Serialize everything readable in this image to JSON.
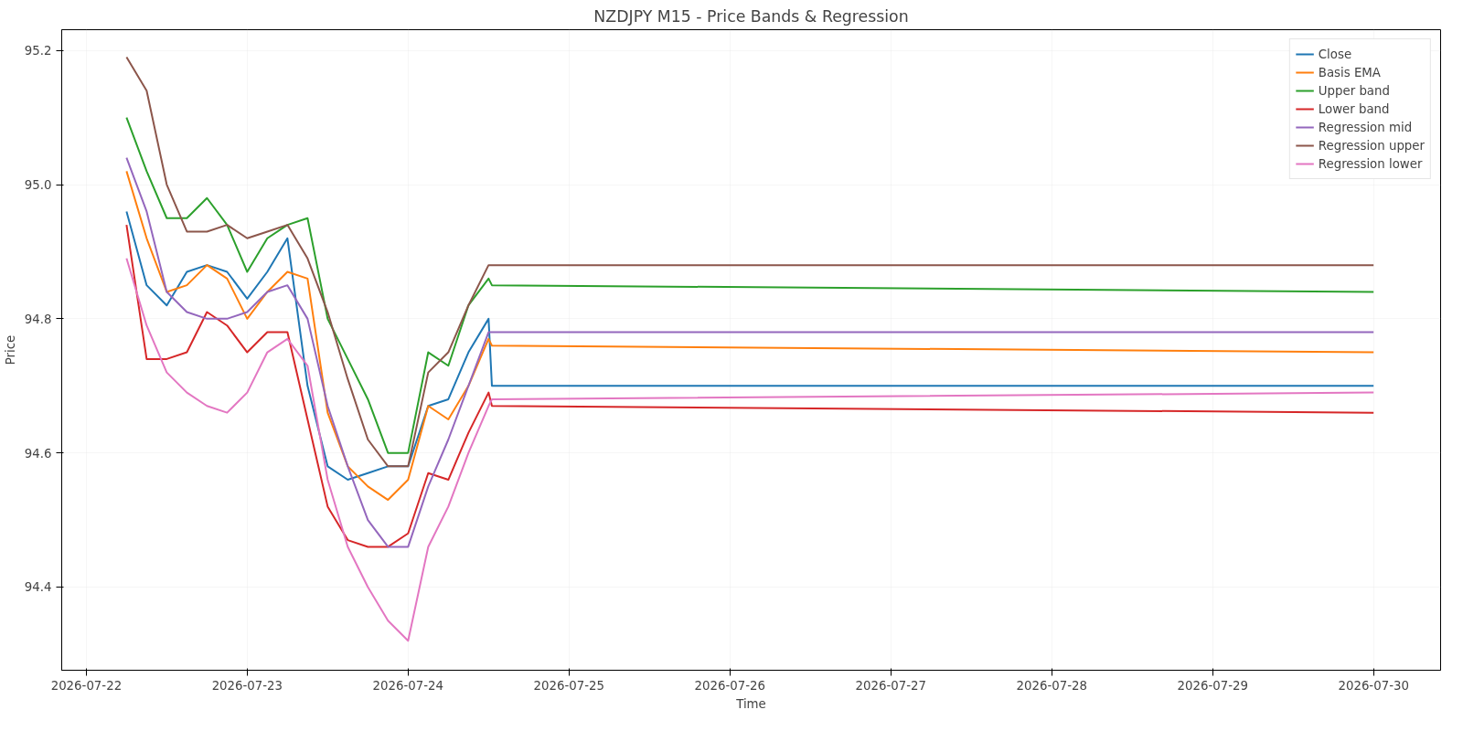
{
  "chart_data": {
    "type": "line",
    "title": "NZDJPY M15 - Price Bands & Regression",
    "xlabel": "Time",
    "ylabel": "Price",
    "x": [
      "2026-07-22T06:00",
      "2026-07-22T09:00",
      "2026-07-22T12:00",
      "2026-07-22T15:00",
      "2026-07-22T18:00",
      "2026-07-22T21:00",
      "2026-07-23T00:00",
      "2026-07-23T03:00",
      "2026-07-23T06:00",
      "2026-07-23T09:00",
      "2026-07-23T12:00",
      "2026-07-23T15:00",
      "2026-07-23T18:00",
      "2026-07-23T21:00",
      "2026-07-24T00:00",
      "2026-07-24T03:00",
      "2026-07-24T06:00",
      "2026-07-24T09:00",
      "2026-07-24T12:00",
      "2026-07-24T12:30",
      "2026-07-30T00:00"
    ],
    "series": [
      {
        "name": "Close",
        "color": "#1f77b4",
        "values": [
          94.96,
          94.85,
          94.82,
          94.87,
          94.88,
          94.87,
          94.83,
          94.87,
          94.92,
          94.7,
          94.58,
          94.56,
          94.57,
          94.58,
          94.58,
          94.67,
          94.68,
          94.75,
          94.8,
          94.7,
          94.7
        ]
      },
      {
        "name": "Basis EMA",
        "color": "#ff7f0e",
        "values": [
          95.02,
          94.92,
          94.84,
          94.85,
          94.88,
          94.86,
          94.8,
          94.84,
          94.87,
          94.86,
          94.66,
          94.58,
          94.55,
          94.53,
          94.56,
          94.67,
          94.65,
          94.7,
          94.77,
          94.76,
          94.75
        ]
      },
      {
        "name": "Upper band",
        "color": "#2ca02c",
        "values": [
          95.1,
          95.02,
          94.95,
          94.95,
          94.98,
          94.94,
          94.87,
          94.92,
          94.94,
          94.95,
          94.8,
          94.74,
          94.68,
          94.6,
          94.6,
          94.75,
          94.73,
          94.82,
          94.86,
          94.85,
          94.84
        ]
      },
      {
        "name": "Lower band",
        "color": "#d62728",
        "values": [
          94.94,
          94.74,
          94.74,
          94.75,
          94.81,
          94.79,
          94.75,
          94.78,
          94.78,
          94.65,
          94.52,
          94.47,
          94.46,
          94.46,
          94.48,
          94.57,
          94.56,
          94.63,
          94.69,
          94.67,
          94.66
        ]
      },
      {
        "name": "Regression mid",
        "color": "#9467bd",
        "values": [
          95.04,
          94.96,
          94.84,
          94.81,
          94.8,
          94.8,
          94.81,
          94.84,
          94.85,
          94.8,
          94.67,
          94.58,
          94.5,
          94.46,
          94.46,
          94.55,
          94.62,
          94.7,
          94.78,
          94.78,
          94.78
        ]
      },
      {
        "name": "Regression upper",
        "color": "#8c564b",
        "values": [
          95.19,
          95.14,
          95.0,
          94.93,
          94.93,
          94.94,
          94.92,
          94.93,
          94.94,
          94.89,
          94.81,
          94.71,
          94.62,
          94.58,
          94.58,
          94.72,
          94.75,
          94.82,
          94.88,
          94.88,
          94.88
        ]
      },
      {
        "name": "Regression lower",
        "color": "#e377c2",
        "values": [
          94.89,
          94.79,
          94.72,
          94.69,
          94.67,
          94.66,
          94.69,
          94.75,
          94.77,
          94.73,
          94.56,
          94.46,
          94.4,
          94.35,
          94.32,
          94.46,
          94.52,
          94.6,
          94.67,
          94.68,
          94.69
        ]
      }
    ],
    "xlim": [
      "2026-07-21T20:20",
      "2026-07-30T10:00"
    ],
    "ylim": [
      94.276,
      95.231
    ],
    "xticks": [
      "2026-07-22",
      "2026-07-23",
      "2026-07-24",
      "2026-07-25",
      "2026-07-26",
      "2026-07-27",
      "2026-07-28",
      "2026-07-29",
      "2026-07-30"
    ],
    "yticks": [
      94.4,
      94.6,
      94.8,
      {
        "value": 95.0,
        "label": "95.0"
      },
      95.2
    ],
    "grid": true,
    "legend": "top right",
    "line_style": "solid",
    "marker": "none"
  }
}
